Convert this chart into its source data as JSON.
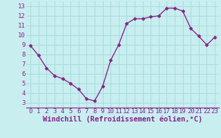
{
  "x": [
    0,
    1,
    2,
    3,
    4,
    5,
    6,
    7,
    8,
    9,
    10,
    11,
    12,
    13,
    14,
    15,
    16,
    17,
    18,
    19,
    20,
    21,
    22,
    23
  ],
  "y": [
    8.9,
    7.9,
    6.6,
    5.8,
    5.5,
    5.0,
    4.4,
    3.4,
    3.2,
    4.7,
    7.4,
    9.0,
    11.2,
    11.7,
    11.7,
    11.9,
    12.0,
    12.8,
    12.8,
    12.5,
    10.7,
    9.9,
    9.0,
    9.8
  ],
  "line_color": "#882288",
  "marker": "D",
  "marker_size": 2.5,
  "bg_color": "#c8eef0",
  "grid_color": "#aadddd",
  "xlabel": "Windchill (Refroidissement éolien,°C)",
  "xlabel_color": "#882288",
  "xlim": [
    -0.5,
    23.5
  ],
  "ylim": [
    2.5,
    13.5
  ],
  "yticks": [
    3,
    4,
    5,
    6,
    7,
    8,
    9,
    10,
    11,
    12,
    13
  ],
  "xticks": [
    0,
    1,
    2,
    3,
    4,
    5,
    6,
    7,
    8,
    9,
    10,
    11,
    12,
    13,
    14,
    15,
    16,
    17,
    18,
    19,
    20,
    21,
    22,
    23
  ],
  "tick_label_size": 6.5,
  "xlabel_size": 7.5,
  "linewidth": 1.0
}
